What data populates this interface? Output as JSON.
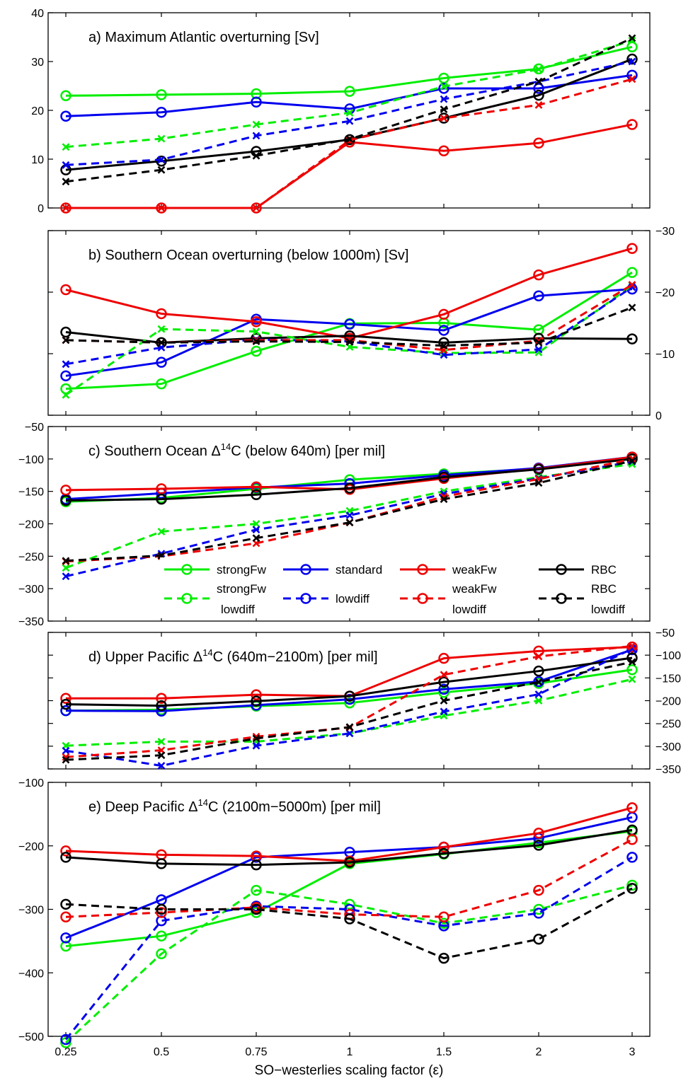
{
  "chart_data": [
    {
      "type": "line",
      "title": "a) Maximum Atlantic overturning [Sv]",
      "x": [
        "0.25",
        "0.5",
        "0.75",
        "1",
        "1.5",
        "2",
        "3"
      ],
      "ylim": [
        0,
        40
      ],
      "yticks": [
        0,
        10,
        20,
        30,
        40
      ],
      "yaxis_side": "left",
      "series": [
        {
          "name": "strongFw",
          "color": "#00ee00",
          "dash": false,
          "marker": "o",
          "values": [
            23,
            23.2,
            23.4,
            23.9,
            26.6,
            28.5,
            33
          ]
        },
        {
          "name": "standard",
          "color": "#0000ee",
          "dash": false,
          "marker": "o",
          "values": [
            18.8,
            19.6,
            21.7,
            20.3,
            24.5,
            24.5,
            27.2
          ]
        },
        {
          "name": "weakFw",
          "color": "#ee0000",
          "dash": false,
          "marker": "o",
          "values": [
            0,
            0,
            0,
            13.5,
            11.7,
            13.3,
            17.1
          ]
        },
        {
          "name": "RBC",
          "color": "#000000",
          "dash": false,
          "marker": "o",
          "values": [
            7.8,
            9.6,
            11.6,
            14,
            18.4,
            23.1,
            30.5
          ]
        },
        {
          "name": "strongFw lowdiff",
          "color": "#00ee00",
          "dash": true,
          "marker": "x",
          "values": [
            12.5,
            14.2,
            17.1,
            19.5,
            24.9,
            28.4,
            34.3
          ]
        },
        {
          "name": "lowdiff",
          "color": "#0000ee",
          "dash": true,
          "marker": "x",
          "values": [
            8.8,
            9.9,
            14.8,
            17.8,
            22.3,
            25.9,
            30
          ]
        },
        {
          "name": "weakFw lowdiff",
          "color": "#ee0000",
          "dash": true,
          "marker": "x",
          "values": [
            0,
            0,
            0,
            13.9,
            18.4,
            21.1,
            26.4
          ]
        },
        {
          "name": "RBC lowdiff",
          "color": "#000000",
          "dash": true,
          "marker": "x",
          "values": [
            5.4,
            7.8,
            10.7,
            14.1,
            20.2,
            25.9,
            34.8
          ]
        }
      ]
    },
    {
      "type": "line",
      "title": "b) Southern Ocean overturning (below 1000m) [Sv]",
      "x": [
        "0.25",
        "0.5",
        "0.75",
        "1",
        "1.5",
        "2",
        "3"
      ],
      "ylim": [
        0,
        -30
      ],
      "yticks": [
        0,
        -10,
        -20,
        -30
      ],
      "yaxis_side": "right",
      "series": [
        {
          "name": "strongFw",
          "color": "#00ee00",
          "dash": false,
          "marker": "o",
          "values": [
            -4.3,
            -5.1,
            -10.4,
            -14.9,
            -15,
            -13.9,
            -23.2
          ]
        },
        {
          "name": "standard",
          "color": "#0000ee",
          "dash": false,
          "marker": "o",
          "values": [
            -6.4,
            -8.6,
            -15.6,
            -14.8,
            -13.8,
            -19.4,
            -20.5
          ]
        },
        {
          "name": "weakFw",
          "color": "#ee0000",
          "dash": false,
          "marker": "o",
          "values": [
            -20.4,
            -16.5,
            -15.2,
            -12.5,
            -16.4,
            -22.8,
            -27.1
          ]
        },
        {
          "name": "RBC",
          "color": "#000000",
          "dash": false,
          "marker": "o",
          "values": [
            -13.5,
            -11.8,
            -12.5,
            -12.9,
            -11.8,
            -12.5,
            -12.4
          ]
        },
        {
          "name": "strongFw lowdiff",
          "color": "#00ee00",
          "dash": true,
          "marker": "x",
          "values": [
            -3.3,
            -14,
            -13.6,
            -11.1,
            -10.1,
            -10.2,
            -21.1
          ]
        },
        {
          "name": "lowdiff",
          "color": "#0000ee",
          "dash": true,
          "marker": "x",
          "values": [
            -8.3,
            -11,
            -12.3,
            -12,
            -9.8,
            -10.7,
            -20.8
          ]
        },
        {
          "name": "weakFw lowdiff",
          "color": "#ee0000",
          "dash": true,
          "marker": "x",
          "values": [
            -12.2,
            -11.8,
            -12.2,
            -12.2,
            -10.6,
            -12.1,
            -21.2
          ]
        },
        {
          "name": "RBC lowdiff",
          "color": "#000000",
          "dash": true,
          "marker": "x",
          "values": [
            -12.2,
            -11.8,
            -12,
            -11.9,
            -11.3,
            -11.8,
            -17.5
          ]
        }
      ]
    },
    {
      "type": "line",
      "title": "c) Southern Ocean Δ14C (below 640m) [per mil]",
      "x": [
        "0.25",
        "0.5",
        "0.75",
        "1",
        "1.5",
        "2",
        "3"
      ],
      "ylim": [
        -350,
        -50
      ],
      "yticks": [
        -350,
        -300,
        -250,
        -200,
        -150,
        -100,
        -50
      ],
      "yaxis_side": "left",
      "series": [
        {
          "name": "strongFw",
          "color": "#00ee00",
          "dash": false,
          "marker": "o",
          "values": [
            -166,
            -160,
            -146,
            -132,
            -123,
            -115,
            -100
          ]
        },
        {
          "name": "standard",
          "color": "#0000ee",
          "dash": false,
          "marker": "o",
          "values": [
            -162,
            -153,
            -144,
            -138,
            -125,
            -114,
            -97
          ]
        },
        {
          "name": "weakFw",
          "color": "#ee0000",
          "dash": false,
          "marker": "o",
          "values": [
            -148,
            -146,
            -143,
            -147,
            -130,
            -115,
            -97
          ]
        },
        {
          "name": "RBC",
          "color": "#000000",
          "dash": false,
          "marker": "o",
          "values": [
            -164,
            -162,
            -155,
            -145,
            -128,
            -116,
            -100
          ]
        },
        {
          "name": "strongFw lowdiff",
          "color": "#00ee00",
          "dash": true,
          "marker": "x",
          "values": [
            -268,
            -212,
            -200,
            -180,
            -150,
            -128,
            -108
          ]
        },
        {
          "name": "lowdiff",
          "color": "#0000ee",
          "dash": true,
          "marker": "x",
          "values": [
            -281,
            -246,
            -209,
            -187,
            -154,
            -130,
            -104
          ]
        },
        {
          "name": "weakFw lowdiff",
          "color": "#ee0000",
          "dash": true,
          "marker": "x",
          "values": [
            -258,
            -250,
            -230,
            -198,
            -158,
            -131,
            -100
          ]
        },
        {
          "name": "RBC lowdiff",
          "color": "#000000",
          "dash": true,
          "marker": "x",
          "values": [
            -257,
            -249,
            -222,
            -198,
            -162,
            -137,
            -103
          ]
        }
      ]
    },
    {
      "type": "line",
      "title": "d) Upper Pacific Δ14C (640m−2100m) [per mil]",
      "x": [
        "0.25",
        "0.5",
        "0.75",
        "1",
        "1.5",
        "2",
        "3"
      ],
      "ylim": [
        -350,
        -50
      ],
      "yticks": [
        -350,
        -300,
        -250,
        -200,
        -150,
        -100,
        -50
      ],
      "yaxis_side": "right",
      "series": [
        {
          "name": "strongFw",
          "color": "#00ee00",
          "dash": false,
          "marker": "o",
          "values": [
            -222,
            -220,
            -212,
            -205,
            -182,
            -162,
            -132
          ]
        },
        {
          "name": "standard",
          "color": "#0000ee",
          "dash": false,
          "marker": "o",
          "values": [
            -222,
            -223,
            -210,
            -197,
            -175,
            -158,
            -88
          ]
        },
        {
          "name": "weakFw",
          "color": "#ee0000",
          "dash": false,
          "marker": "o",
          "values": [
            -195,
            -195,
            -187,
            -190,
            -107,
            -91,
            -82
          ]
        },
        {
          "name": "RBC",
          "color": "#000000",
          "dash": false,
          "marker": "o",
          "values": [
            -208,
            -211,
            -201,
            -190,
            -159,
            -135,
            -106
          ]
        },
        {
          "name": "strongFw lowdiff",
          "color": "#00ee00",
          "dash": true,
          "marker": "x",
          "values": [
            -299,
            -290,
            -290,
            -272,
            -233,
            -200,
            -153
          ]
        },
        {
          "name": "lowdiff",
          "color": "#0000ee",
          "dash": true,
          "marker": "x",
          "values": [
            -310,
            -343,
            -299,
            -272,
            -224,
            -186,
            -86
          ]
        },
        {
          "name": "weakFw lowdiff",
          "color": "#ee0000",
          "dash": true,
          "marker": "x",
          "values": [
            -324,
            -309,
            -279,
            -259,
            -143,
            -103,
            -80
          ]
        },
        {
          "name": "RBC lowdiff",
          "color": "#000000",
          "dash": true,
          "marker": "x",
          "values": [
            -330,
            -320,
            -283,
            -258,
            -200,
            -159,
            -115
          ]
        }
      ]
    },
    {
      "type": "line",
      "title": "e) Deep Pacific Δ14C (2100m−5000m) [per mil]",
      "x": [
        "0.25",
        "0.5",
        "0.75",
        "1",
        "1.5",
        "2",
        "3"
      ],
      "xlabel": "SO−westerlies scaling factor (ε)",
      "ylim": [
        -500,
        -100
      ],
      "yticks": [
        -500,
        -400,
        -300,
        -200,
        -100
      ],
      "yaxis_side": "left",
      "series": [
        {
          "name": "strongFw",
          "color": "#00ee00",
          "dash": false,
          "marker": "o",
          "values": [
            -358,
            -342,
            -305,
            -228,
            -213,
            -195,
            -177
          ]
        },
        {
          "name": "standard",
          "color": "#0000ee",
          "dash": false,
          "marker": "o",
          "values": [
            -345,
            -285,
            -218,
            -210,
            -202,
            -188,
            -155
          ]
        },
        {
          "name": "weakFw",
          "color": "#ee0000",
          "dash": false,
          "marker": "o",
          "values": [
            -208,
            -214,
            -216,
            -224,
            -202,
            -180,
            -140
          ]
        },
        {
          "name": "RBC",
          "color": "#000000",
          "dash": false,
          "marker": "o",
          "values": [
            -218,
            -228,
            -230,
            -226,
            -212,
            -199,
            -175
          ]
        },
        {
          "name": "strongFw lowdiff",
          "color": "#00ee00",
          "dash": true,
          "marker": "o",
          "values": [
            -510,
            -370,
            -270,
            -292,
            -322,
            -300,
            -262
          ]
        },
        {
          "name": "lowdiff",
          "color": "#0000ee",
          "dash": true,
          "marker": "o",
          "values": [
            -505,
            -318,
            -295,
            -300,
            -326,
            -306,
            -218
          ]
        },
        {
          "name": "weakFw lowdiff",
          "color": "#ee0000",
          "dash": true,
          "marker": "o",
          "values": [
            -312,
            -305,
            -297,
            -308,
            -312,
            -270,
            -190
          ]
        },
        {
          "name": "RBC lowdiff",
          "color": "#000000",
          "dash": true,
          "marker": "o",
          "values": [
            -292,
            -300,
            -300,
            -315,
            -377,
            -347,
            -267
          ]
        }
      ]
    }
  ],
  "legend": {
    "entries": [
      {
        "line1": "strongFw",
        "line2": "",
        "color": "#00ee00",
        "dash": false
      },
      {
        "line1": "standard",
        "line2": "",
        "color": "#0000ee",
        "dash": false
      },
      {
        "line1": "weakFw",
        "line2": "",
        "color": "#ee0000",
        "dash": false
      },
      {
        "line1": "RBC",
        "line2": "",
        "color": "#000000",
        "dash": false
      },
      {
        "line1": "strongFw",
        "line2": "lowdiff",
        "color": "#00ee00",
        "dash": true
      },
      {
        "line1": "lowdiff",
        "line2": "",
        "color": "#0000ee",
        "dash": true
      },
      {
        "line1": "weakFw",
        "line2": "lowdiff",
        "color": "#ee0000",
        "dash": true
      },
      {
        "line1": "RBC",
        "line2": "lowdiff",
        "color": "#000000",
        "dash": true
      }
    ]
  }
}
